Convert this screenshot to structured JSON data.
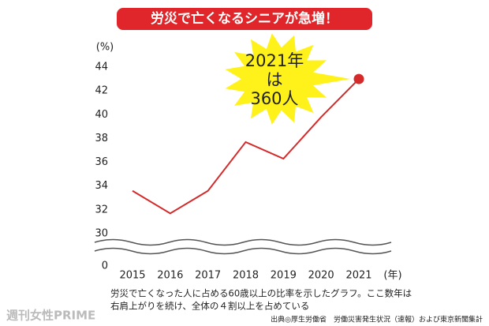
{
  "chart_data": {
    "type": "line",
    "title": "労災で亡くなるシニアが急増！",
    "y_unit": "(%)",
    "x_unit": "(年)",
    "categories": [
      "2015",
      "2016",
      "2017",
      "2018",
      "2019",
      "2020",
      "2021"
    ],
    "series": [
      {
        "name": "60歳以上の比率",
        "color": "#d42a2a",
        "values": [
          33.6,
          31.7,
          33.6,
          37.7,
          36.3,
          39.8,
          43.0
        ]
      }
    ],
    "ylim": [
      0,
      44
    ],
    "yticks": [
      0,
      30,
      32,
      34,
      36,
      38,
      40,
      42,
      44
    ],
    "axis_break": true,
    "grid": false,
    "annotation": [
      "2021年",
      "は",
      "360人"
    ],
    "caption": [
      "労災で亡くなった人に占める60歳以上の比率を示したグラフ。ここ数年は",
      "右肩上がりを続け、全体の４割以上を占めている"
    ],
    "source": "出典◎厚生労働省　労働災害発生状況（速報）および東京新聞集計",
    "watermark": "週刊女性PRIME"
  }
}
